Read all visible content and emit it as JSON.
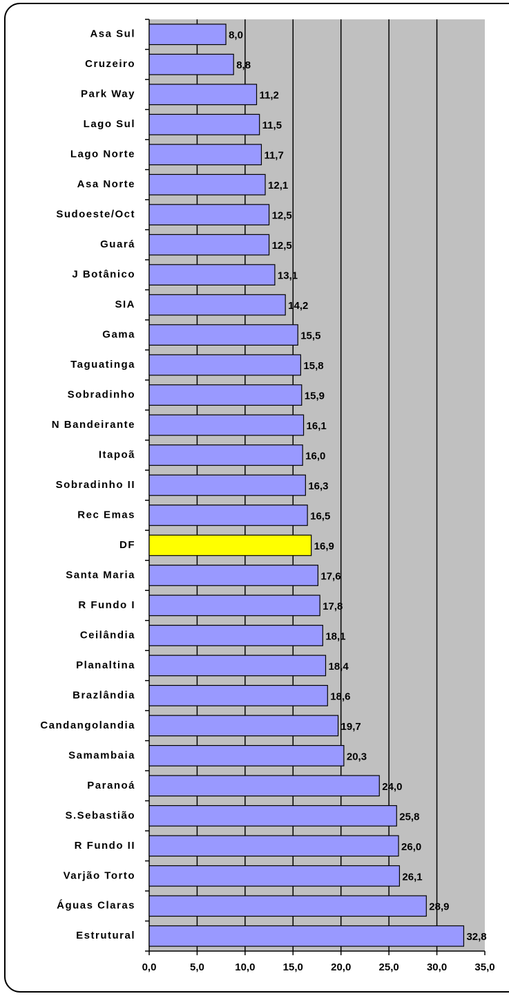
{
  "chart_data": {
    "type": "bar",
    "orientation": "horizontal",
    "categories": [
      "Asa Sul",
      "Cruzeiro",
      "Park Way",
      "Lago Sul",
      "Lago Norte",
      "Asa Norte",
      "Sudoeste/Oct",
      "Guará",
      "J Botânico",
      "SIA",
      "Gama",
      "Taguatinga",
      "Sobradinho",
      "N Bandeirante",
      "Itapoã",
      "Sobradinho II",
      "Rec Emas",
      "DF",
      "Santa Maria",
      "R Fundo I",
      "Ceilândia",
      "Planaltina",
      "Brazlândia",
      "Candangolandia",
      "Samambaia",
      "Paranoá",
      "S.Sebastião",
      "R Fundo II",
      "Varjão Torto",
      "Águas Claras",
      "Estrutural"
    ],
    "values": [
      8.0,
      8.8,
      11.2,
      11.5,
      11.7,
      12.1,
      12.5,
      12.5,
      13.1,
      14.2,
      15.5,
      15.8,
      15.9,
      16.1,
      16.0,
      16.3,
      16.5,
      16.9,
      17.6,
      17.8,
      18.1,
      18.4,
      18.6,
      19.7,
      20.3,
      24.0,
      25.8,
      26.0,
      26.1,
      28.9,
      32.8
    ],
    "value_labels": [
      "8,0",
      "8,8",
      "11,2",
      "11,5",
      "11,7",
      "12,1",
      "12,5",
      "12,5",
      "13,1",
      "14,2",
      "15,5",
      "15,8",
      "15,9",
      "16,1",
      "16,0",
      "16,3",
      "16,5",
      "16,9",
      "17,6",
      "17,8",
      "18,1",
      "18,4",
      "18,6",
      "19,7",
      "20,3",
      "24,0",
      "25,8",
      "26,0",
      "26,1",
      "28,9",
      "32,8"
    ],
    "colors": [
      "#9999ff",
      "#9999ff",
      "#9999ff",
      "#9999ff",
      "#9999ff",
      "#9999ff",
      "#9999ff",
      "#9999ff",
      "#9999ff",
      "#9999ff",
      "#9999ff",
      "#9999ff",
      "#9999ff",
      "#9999ff",
      "#9999ff",
      "#9999ff",
      "#9999ff",
      "#ffff00",
      "#9999ff",
      "#9999ff",
      "#9999ff",
      "#9999ff",
      "#9999ff",
      "#9999ff",
      "#9999ff",
      "#9999ff",
      "#9999ff",
      "#9999ff",
      "#9999ff",
      "#9999ff",
      "#9999ff"
    ],
    "xlim": [
      0,
      35
    ],
    "xticks": [
      {
        "value": 0,
        "label": "0,0"
      },
      {
        "value": 5,
        "label": "5,0"
      },
      {
        "value": 10,
        "label": "10,0"
      },
      {
        "value": 15,
        "label": "15,0"
      },
      {
        "value": 20,
        "label": "20,0"
      },
      {
        "value": 25,
        "label": "25,0"
      },
      {
        "value": 30,
        "label": "30,0"
      },
      {
        "value": 35,
        "label": "35,0"
      }
    ],
    "grid": true,
    "plot_background": "#c0c0c0"
  }
}
